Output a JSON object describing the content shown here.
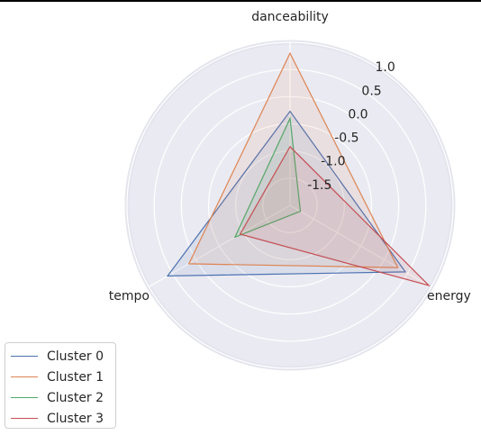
{
  "chart_data": {
    "type": "radar",
    "axes": [
      "danceability",
      "energy",
      "tempo"
    ],
    "radial_ticks": [
      "-1.5",
      "-1.0",
      "-0.5",
      "0.0",
      "0.5",
      "1.0"
    ],
    "radial_range": [
      -2.0,
      1.0
    ],
    "grid": true,
    "legend_position": "bottom-left",
    "series": [
      {
        "name": "Cluster 0",
        "color": "#4c72b0",
        "values": [
          -0.27,
          0.45,
          0.6
        ]
      },
      {
        "name": "Cluster 1",
        "color": "#dd8452",
        "values": [
          0.8,
          0.29,
          0.15
        ]
      },
      {
        "name": "Cluster 2",
        "color": "#55a868",
        "values": [
          -0.4,
          -1.78,
          -0.83
        ]
      },
      {
        "name": "Cluster 3",
        "color": "#c44e52",
        "values": [
          -0.92,
          0.95,
          -0.94
        ]
      }
    ]
  }
}
